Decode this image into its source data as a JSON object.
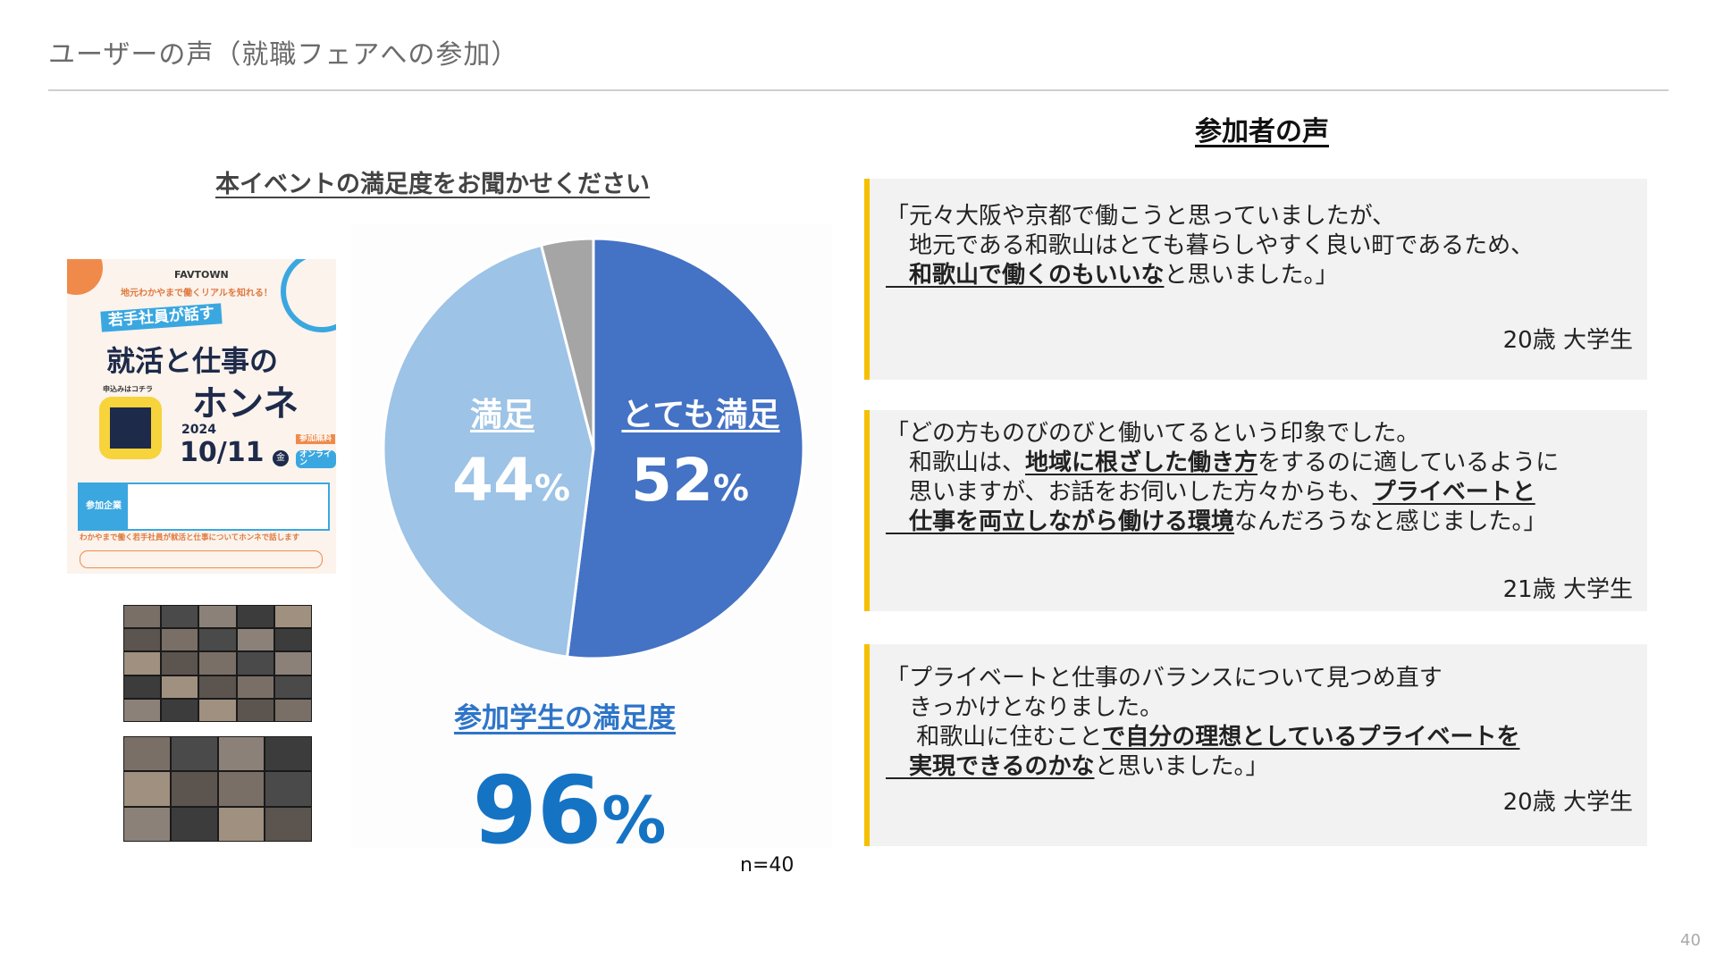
{
  "header": {
    "title": "ユーザーの声（就職フェアへの参加）",
    "page_number": "40"
  },
  "survey": {
    "heading": "本イベントの満足度をお聞かせください",
    "overall_label": "参加学生の満足度",
    "overall_value": "96",
    "overall_unit": "%",
    "sample": "n=40"
  },
  "chart_data": {
    "type": "pie",
    "slices": [
      {
        "name": "とても満足",
        "value": 52,
        "color": "#4472C4"
      },
      {
        "name": "満足",
        "value": 44,
        "color": "#9DC3E6"
      },
      {
        "name": "",
        "value": 4,
        "color": "#A5A5A5"
      }
    ],
    "start": "top",
    "direction": "clockwise",
    "labels": {
      "very": {
        "name": "とても満足",
        "pct": "52"
      },
      "sat": {
        "name": "満足",
        "pct": "44"
      },
      "unit": "%"
    }
  },
  "poster": {
    "brand": "FAVTOWN",
    "tagline": "地元わかやまで働くリアルを知れる！",
    "badge": "若手社員が話す",
    "title1": "就活と仕事の",
    "title2": "ホンネ",
    "year": "2024",
    "date": "10/11",
    "day": "金",
    "free": "参加無料",
    "online": "オンライン",
    "qr_label": "申込みはコチラ",
    "companies": "参加企業",
    "footer": "わかやまで働く若手社員が就活と仕事についてホンネで話します"
  },
  "voices": {
    "heading": "参加者の声",
    "items": [
      {
        "lines": [
          [
            {
              "t": "「元々大阪や京都で働こうと思っていましたが、"
            }
          ],
          [
            {
              "t": "　地元である和歌山はとても暮らしやすく良い町であるため、"
            }
          ],
          [
            {
              "t": "　和歌山で働くのもいいな",
              "b": true
            },
            {
              "t": "と思いました。」"
            }
          ]
        ],
        "author": "20歳 大学生"
      },
      {
        "lines": [
          [
            {
              "t": "「どの方ものびのびと働いてるという印象でした。"
            }
          ],
          [
            {
              "t": "　和歌山は、"
            },
            {
              "t": "地域に根ざした働き方",
              "b": true
            },
            {
              "t": "をするのに適しているように"
            }
          ],
          [
            {
              "t": "　思いますが、お話をお伺いした方々からも、"
            },
            {
              "t": "プライベートと",
              "b": true
            }
          ],
          [
            {
              "t": "　仕事を両立しながら働ける環境",
              "b": true
            },
            {
              "t": "なんだろうなと感じました。」"
            }
          ]
        ],
        "author": "21歳 大学生"
      },
      {
        "lines": [
          [
            {
              "t": "「プライベートと仕事のバランスについて見つめ直す"
            }
          ],
          [
            {
              "t": "　きっかけとなりました。"
            }
          ],
          [
            {
              "t": "　 和歌山に住むこと"
            },
            {
              "t": "で自分の理想としているプライベートを",
              "b": true
            }
          ],
          [
            {
              "t": "　実現できるのかな",
              "b": true
            },
            {
              "t": "と思いました。」"
            }
          ]
        ],
        "author": "20歳 大学生"
      }
    ]
  }
}
